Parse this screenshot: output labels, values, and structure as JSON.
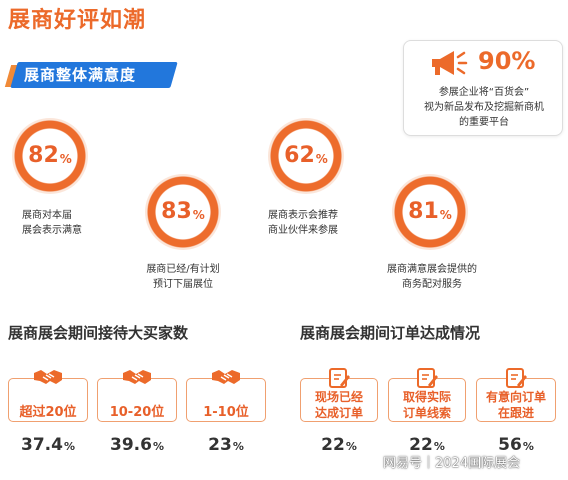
{
  "title": "展商好评如潮",
  "satisfaction": {
    "heading": "展商整体满意度",
    "items": [
      {
        "value": "82",
        "unit": "%",
        "caption": [
          "展商对本届",
          "展会表示满意"
        ]
      },
      {
        "value": "83",
        "unit": "%",
        "caption": [
          "展商已经/有计划",
          "预订下届展位"
        ]
      },
      {
        "value": "62",
        "unit": "%",
        "caption": [
          "展商表示会推荐",
          "商业伙伴来参展"
        ]
      },
      {
        "value": "81",
        "unit": "%",
        "caption": [
          "展商满意展会提供的",
          "商务配对服务"
        ]
      }
    ],
    "highlight": {
      "value": "90%",
      "icon": "megaphone-icon",
      "text": [
        "参展企业将“百货会”",
        "视为新品发布及挖掘新商机",
        "的重要平台"
      ]
    }
  },
  "buyers": {
    "heading": "展商展会期间接待大买家数",
    "icon": "handshake-icon",
    "items": [
      {
        "label": "超过20位",
        "value": "37.4",
        "unit": "%"
      },
      {
        "label": "10-20位",
        "value": "39.6",
        "unit": "%"
      },
      {
        "label": "1-10位",
        "value": "23",
        "unit": "%"
      }
    ]
  },
  "orders": {
    "heading": "展商展会期间订单达成情况",
    "icon": "order-edit-icon",
    "items": [
      {
        "label": [
          "现场已经",
          "达成订单"
        ],
        "value": "22",
        "unit": "%"
      },
      {
        "label": [
          "取得实际",
          "订单线索"
        ],
        "value": "22",
        "unit": "%"
      },
      {
        "label": [
          "有意向订单",
          "在跟进"
        ],
        "value": "56",
        "unit": "%"
      }
    ]
  },
  "watermark": "网易号｜2024国际展会",
  "colors": {
    "accent": "#ec6a2a",
    "ribbon": "#2277dc",
    "card_border": "#f0a070"
  }
}
